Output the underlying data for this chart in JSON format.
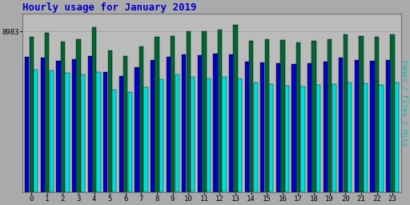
{
  "title": "Hourly usage for January 2019",
  "ylabel_right": "Pages / Files / Hits",
  "hours": [
    0,
    1,
    2,
    3,
    4,
    5,
    6,
    7,
    8,
    9,
    10,
    11,
    12,
    13,
    14,
    15,
    16,
    17,
    18,
    19,
    20,
    21,
    22,
    23
  ],
  "hits": [
    8700,
    8900,
    8400,
    8550,
    9200,
    7900,
    7600,
    8150,
    8700,
    8750,
    9000,
    9000,
    9100,
    9350,
    8450,
    8550,
    8500,
    8350,
    8450,
    8550,
    8800,
    8750,
    8700,
    8800
  ],
  "files": [
    7550,
    7500,
    7350,
    7450,
    7600,
    6700,
    6500,
    7000,
    7400,
    7550,
    7700,
    7650,
    7750,
    7700,
    7300,
    7250,
    7200,
    7150,
    7200,
    7300,
    7500,
    7400,
    7350,
    7400
  ],
  "pages": [
    6850,
    6800,
    6650,
    6600,
    6700,
    5750,
    5600,
    5850,
    6300,
    6600,
    6450,
    6350,
    6450,
    6350,
    6150,
    6050,
    5950,
    5900,
    6000,
    6050,
    6150,
    6100,
    6000,
    6150
  ],
  "color_hits": "#006633",
  "color_files": "#0000cc",
  "color_pages": "#00dddd",
  "bg_color": "#aaaaaa",
  "plot_bg": "#bbbbbb",
  "title_color": "#0000cc",
  "ylabel_color": "#00bbbb",
  "ymax": 9983,
  "ytick_val": 8983,
  "ytick_label": "8983",
  "grid_color": "#999999",
  "bar_edge_color": "#000000"
}
